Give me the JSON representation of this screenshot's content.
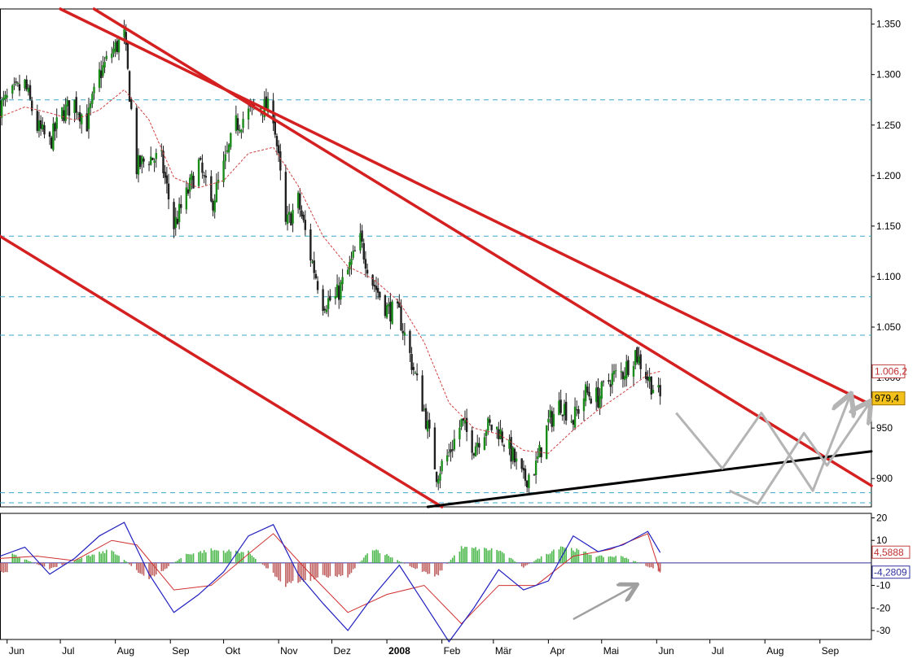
{
  "chart_data": [
    {
      "type": "candlestick",
      "x_axis": {
        "tick_labels": [
          "Jun",
          "Jul",
          "Aug",
          "Sep",
          "Okt",
          "Nov",
          "Dez",
          "2008",
          "Feb",
          "Mär",
          "Apr",
          "Mai",
          "Jun",
          "Jul",
          "Aug",
          "Sep"
        ],
        "range": [
          "2007-06",
          "2008-09"
        ]
      },
      "y_axis": {
        "tick_labels": [
          "1.350",
          "1.300",
          "1.250",
          "1.200",
          "1.150",
          "1.100",
          "1.050",
          "1.000",
          "950",
          "900"
        ],
        "ticks": [
          1350,
          1300,
          1250,
          1200,
          1150,
          1100,
          1050,
          1000,
          950,
          900
        ],
        "ylim": [
          872,
          1365
        ]
      },
      "price_labels": [
        {
          "text": "1.006,2",
          "value": 1006.2
        },
        {
          "text": "979,4",
          "value": 979.4
        }
      ],
      "horizontal_levels": [
        1275,
        1140,
        1080,
        1042,
        886,
        876
      ],
      "close_path": [
        [
          "2007-05-28",
          1268
        ],
        [
          "2007-06-04",
          1280
        ],
        [
          "2007-06-11",
          1290
        ],
        [
          "2007-06-18",
          1248
        ],
        [
          "2007-06-25",
          1232
        ],
        [
          "2007-07-02",
          1262
        ],
        [
          "2007-07-09",
          1272
        ],
        [
          "2007-07-16",
          1252
        ],
        [
          "2007-07-23",
          1300
        ],
        [
          "2007-07-30",
          1322
        ],
        [
          "2007-08-06",
          1338
        ],
        [
          "2007-08-13",
          1208
        ],
        [
          "2007-08-20",
          1218
        ],
        [
          "2007-08-27",
          1215
        ],
        [
          "2007-09-03",
          1150
        ],
        [
          "2007-09-10",
          1180
        ],
        [
          "2007-09-17",
          1212
        ],
        [
          "2007-09-24",
          1170
        ],
        [
          "2007-10-01",
          1208
        ],
        [
          "2007-10-08",
          1250
        ],
        [
          "2007-10-15",
          1262
        ],
        [
          "2007-10-22",
          1270
        ],
        [
          "2007-10-29",
          1262
        ],
        [
          "2007-11-05",
          1150
        ],
        [
          "2007-11-12",
          1175
        ],
        [
          "2007-11-19",
          1120
        ],
        [
          "2007-11-26",
          1075
        ],
        [
          "2007-12-03",
          1078
        ],
        [
          "2007-12-10",
          1105
        ],
        [
          "2007-12-17",
          1135
        ],
        [
          "2007-12-24",
          1095
        ],
        [
          "2008-01-01",
          1068
        ],
        [
          "2008-01-08",
          1062
        ],
        [
          "2008-01-15",
          1015
        ],
        [
          "2008-01-22",
          968
        ],
        [
          "2008-01-29",
          905
        ],
        [
          "2008-02-05",
          925
        ],
        [
          "2008-02-12",
          955
        ],
        [
          "2008-02-19",
          932
        ],
        [
          "2008-02-26",
          952
        ],
        [
          "2008-03-04",
          948
        ],
        [
          "2008-03-11",
          925
        ],
        [
          "2008-03-18",
          898
        ],
        [
          "2008-03-25",
          912
        ],
        [
          "2008-04-01",
          955
        ],
        [
          "2008-04-08",
          975
        ],
        [
          "2008-04-15",
          958
        ],
        [
          "2008-04-22",
          985
        ],
        [
          "2008-04-29",
          980
        ],
        [
          "2008-05-06",
          1000
        ],
        [
          "2008-05-13",
          1005
        ],
        [
          "2008-05-20",
          1025
        ],
        [
          "2008-05-27",
          1000
        ],
        [
          "2008-06-03",
          979.4
        ]
      ],
      "moving_average": [
        [
          "2007-05-28",
          1258
        ],
        [
          "2007-06-11",
          1268
        ],
        [
          "2007-06-25",
          1262
        ],
        [
          "2007-07-09",
          1255
        ],
        [
          "2007-07-23",
          1265
        ],
        [
          "2007-08-06",
          1285
        ],
        [
          "2007-08-20",
          1255
        ],
        [
          "2007-09-03",
          1198
        ],
        [
          "2007-09-17",
          1188
        ],
        [
          "2007-10-01",
          1195
        ],
        [
          "2007-10-15",
          1222
        ],
        [
          "2007-10-29",
          1228
        ],
        [
          "2007-11-12",
          1190
        ],
        [
          "2007-11-26",
          1140
        ],
        [
          "2007-12-10",
          1110
        ],
        [
          "2007-12-24",
          1098
        ],
        [
          "2008-01-08",
          1075
        ],
        [
          "2008-01-22",
          1035
        ],
        [
          "2008-02-05",
          975
        ],
        [
          "2008-02-19",
          950
        ],
        [
          "2008-03-04",
          944
        ],
        [
          "2008-03-18",
          928
        ],
        [
          "2008-04-01",
          925
        ],
        [
          "2008-04-15",
          948
        ],
        [
          "2008-04-29",
          968
        ],
        [
          "2008-05-13",
          985
        ],
        [
          "2008-05-27",
          1003
        ],
        [
          "2008-06-03",
          1006.2
        ]
      ],
      "trendlines": [
        {
          "color": "#d42020",
          "points": [
            [
              "2007-07-01",
              1365
            ],
            [
              "2008-09-30",
              973
            ]
          ]
        },
        {
          "color": "#d42020",
          "points": [
            [
              "2007-07-20",
              1365
            ],
            [
              "2008-09-30",
              893
            ]
          ]
        },
        {
          "color": "#d42020",
          "points": [
            [
              "2007-05-28",
              1140
            ],
            [
              "2008-02-01",
              872
            ]
          ]
        },
        {
          "color": "#000000",
          "points": [
            [
              "2008-01-24",
              872
            ],
            [
              "2008-09-30",
              927
            ]
          ]
        }
      ],
      "projection_paths": [
        [
          [
            "2008-06-12",
            965
          ],
          [
            "2008-07-08",
            910
          ],
          [
            "2008-07-30",
            965
          ],
          [
            "2008-08-28",
            888
          ],
          [
            "2008-09-18",
            982
          ]
        ],
        [
          [
            "2008-07-12",
            888
          ],
          [
            "2008-07-28",
            875
          ],
          [
            "2008-08-23",
            945
          ],
          [
            "2008-09-05",
            913
          ],
          [
            "2008-09-29",
            975
          ]
        ]
      ],
      "colors": {
        "up_candle": "#1a8c1a",
        "down_candle": "#202020",
        "trendline": "#d42020",
        "support": "#000000",
        "level": "#3aa8c8",
        "moving_average": "#d04040",
        "projection": "#b4b4b4",
        "price_tag_fill": "#f2c21a"
      }
    },
    {
      "type": "macd",
      "y_axis": {
        "tick_labels": [
          "20",
          "10",
          "-10",
          "-20",
          "-30"
        ],
        "ticks": [
          20,
          10,
          -10,
          -20,
          -30
        ],
        "ylim": [
          -34,
          22
        ]
      },
      "value_labels": [
        {
          "text": "4,5888",
          "value": 4.5888
        },
        {
          "text": "-4,2809",
          "value": -4.2809
        }
      ],
      "macd_line": [
        [
          "2007-05-28",
          3
        ],
        [
          "2007-06-11",
          7
        ],
        [
          "2007-06-25",
          -5
        ],
        [
          "2007-07-09",
          2
        ],
        [
          "2007-07-23",
          12
        ],
        [
          "2007-08-06",
          18
        ],
        [
          "2007-08-20",
          -5
        ],
        [
          "2007-09-03",
          -22
        ],
        [
          "2007-09-17",
          -14
        ],
        [
          "2007-10-01",
          -4
        ],
        [
          "2007-10-15",
          12
        ],
        [
          "2007-10-29",
          17
        ],
        [
          "2007-11-12",
          -5
        ],
        [
          "2007-11-26",
          -18
        ],
        [
          "2007-12-10",
          -30
        ],
        [
          "2007-12-24",
          -15
        ],
        [
          "2008-01-08",
          -1
        ],
        [
          "2008-01-22",
          -18
        ],
        [
          "2008-02-05",
          -35
        ],
        [
          "2008-02-19",
          -20
        ],
        [
          "2008-03-04",
          -3
        ],
        [
          "2008-03-18",
          -12
        ],
        [
          "2008-04-01",
          -8
        ],
        [
          "2008-04-15",
          12
        ],
        [
          "2008-04-29",
          5
        ],
        [
          "2008-05-13",
          8
        ],
        [
          "2008-05-27",
          14
        ],
        [
          "2008-06-03",
          4.5888
        ]
      ],
      "signal_line": [
        [
          "2007-05-28",
          2
        ],
        [
          "2007-06-18",
          3
        ],
        [
          "2007-07-09",
          1
        ],
        [
          "2007-07-30",
          10
        ],
        [
          "2007-08-13",
          8
        ],
        [
          "2007-09-03",
          -12
        ],
        [
          "2007-09-24",
          -10
        ],
        [
          "2007-10-15",
          4
        ],
        [
          "2007-10-29",
          13
        ],
        [
          "2007-11-19",
          -5
        ],
        [
          "2007-12-10",
          -22
        ],
        [
          "2008-01-01",
          -14
        ],
        [
          "2008-01-22",
          -10
        ],
        [
          "2008-02-12",
          -27
        ],
        [
          "2008-03-04",
          -10
        ],
        [
          "2008-03-25",
          -10
        ],
        [
          "2008-04-15",
          3
        ],
        [
          "2008-05-06",
          6
        ],
        [
          "2008-05-27",
          13
        ],
        [
          "2008-06-03",
          -4.2809
        ]
      ],
      "histogram": [
        [
          "2007-06-04",
          4
        ],
        [
          "2007-06-25",
          -3
        ],
        [
          "2007-07-16",
          3
        ],
        [
          "2007-07-30",
          6
        ],
        [
          "2007-08-20",
          -8
        ],
        [
          "2007-09-10",
          4
        ],
        [
          "2007-09-24",
          6
        ],
        [
          "2007-10-15",
          5
        ],
        [
          "2007-11-05",
          -10
        ],
        [
          "2007-11-26",
          -6
        ],
        [
          "2007-12-10",
          -6
        ],
        [
          "2007-12-24",
          7
        ],
        [
          "2008-01-15",
          -2
        ],
        [
          "2008-01-29",
          -6
        ],
        [
          "2008-02-12",
          7
        ],
        [
          "2008-03-04",
          6
        ],
        [
          "2008-03-18",
          -2
        ],
        [
          "2008-04-08",
          8
        ],
        [
          "2008-04-29",
          3
        ],
        [
          "2008-05-13",
          3
        ],
        [
          "2008-06-03",
          -4
        ]
      ],
      "arrow": {
        "from": [
          "2008-04-15",
          -25
        ],
        "to": [
          "2008-05-20",
          -10
        ]
      },
      "colors": {
        "macd_line": "#2020c0",
        "signal_line": "#d03030",
        "hist_positive": "#4cb84c",
        "hist_negative": "#c06060",
        "zero_line": "#30309a",
        "arrow": "#a0a0a0"
      }
    }
  ]
}
